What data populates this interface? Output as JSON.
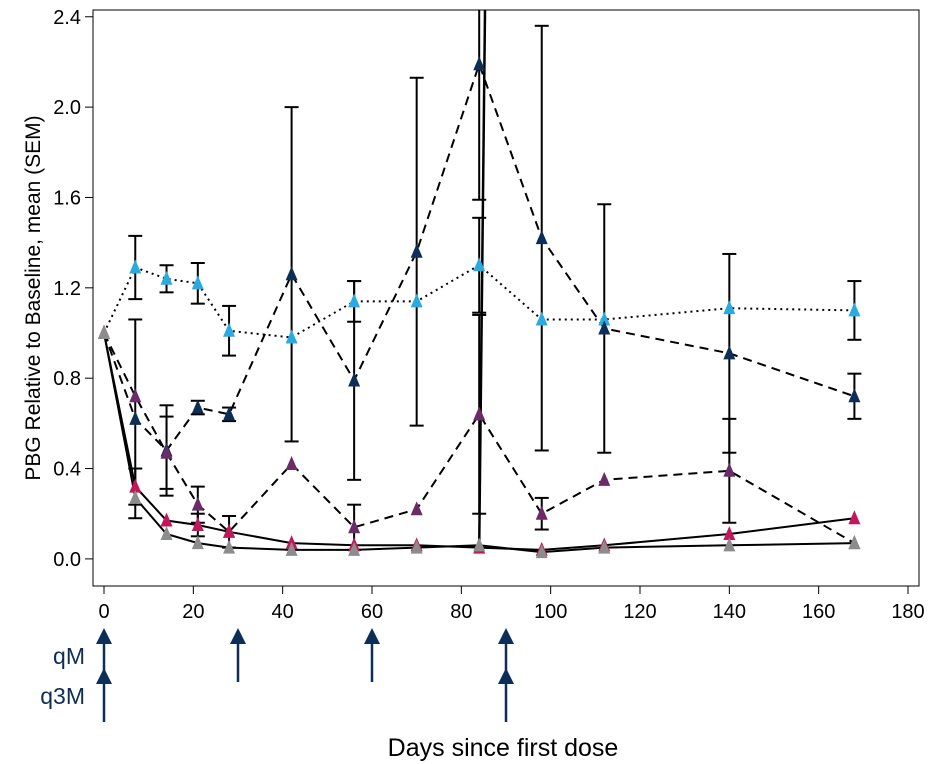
{
  "chart_data": {
    "type": "line",
    "title": "",
    "xlabel": "Days since first dose",
    "ylabel": "PBG Relative to Baseline, mean (SEM)",
    "xlim": [
      -2,
      180
    ],
    "ylim": [
      -0.12,
      2.43
    ],
    "xticks": [
      "0",
      "20",
      "40",
      "60",
      "80",
      "100",
      "120",
      "140",
      "160",
      "180"
    ],
    "yticks": [
      "0.0",
      "0.4",
      "0.8",
      "1.2",
      "1.6",
      "2.0",
      "2.4"
    ],
    "grid": false,
    "legend": "none",
    "series": [
      {
        "color": "#29abe2",
        "marker": "triangle",
        "line": "dotted",
        "x": [
          0,
          7,
          14,
          21,
          28,
          42,
          56,
          70,
          84,
          98,
          112,
          140,
          168
        ],
        "y": [
          1.0,
          1.29,
          1.24,
          1.22,
          1.01,
          0.98,
          1.14,
          1.14,
          1.3,
          1.06,
          1.06,
          1.11,
          1.1
        ],
        "error": [
          0,
          0.14,
          0.06,
          0.09,
          0.11,
          0,
          0.09,
          0,
          0.21,
          0,
          0,
          0,
          0.13
        ]
      },
      {
        "color": "#0d2f57",
        "marker": "triangle",
        "line": "dashed",
        "x": [
          0,
          7,
          14,
          21,
          28,
          42,
          56,
          70,
          84,
          98,
          112,
          140,
          168
        ],
        "y": [
          1.0,
          0.62,
          0.48,
          0.67,
          0.64,
          1.26,
          0.79,
          1.36,
          2.19,
          1.42,
          1.02,
          0.91,
          0.72
        ],
        "error": [
          0,
          0.44,
          0.2,
          0.03,
          0.03,
          0.74,
          0.44,
          0.77,
          0.6,
          0.94,
          0.55,
          0.44,
          0.1
        ]
      },
      {
        "color": "#6b2a68",
        "marker": "triangle",
        "line": "dashed",
        "x": [
          0,
          7,
          14,
          21,
          28,
          42,
          56,
          70,
          84,
          98,
          112,
          140,
          168
        ],
        "y": [
          1.0,
          0.72,
          0.47,
          0.24,
          0.12,
          0.42,
          0.14,
          0.22,
          0.64,
          0.2,
          0.35,
          0.39,
          0.07
        ],
        "error": [
          0,
          0,
          0.16,
          0.08,
          0.07,
          0,
          0.1,
          0,
          0.44,
          0.07,
          0,
          0.23,
          0
        ]
      },
      {
        "color": "#c2185b",
        "marker": "triangle",
        "line": "solid",
        "x": [
          0,
          7,
          14,
          21,
          28,
          42,
          56,
          70,
          84,
          98,
          112,
          140,
          168
        ],
        "y": [
          1.0,
          0.32,
          0.17,
          0.15,
          0.12,
          0.07,
          0.06,
          0.06,
          0.05,
          0.04,
          0.06,
          0.11,
          0.18
        ],
        "error": [
          0,
          0.08,
          0,
          0.05,
          0,
          0,
          0,
          0,
          0,
          0,
          0,
          0,
          0
        ]
      },
      {
        "color": "#8c8c8c",
        "marker": "triangle",
        "line": "solid",
        "x": [
          0,
          7,
          14,
          21,
          28,
          42,
          56,
          70,
          84,
          98,
          112,
          140,
          168
        ],
        "y": [
          1.0,
          0.27,
          0.11,
          0.07,
          0.05,
          0.04,
          0.04,
          0.05,
          0.06,
          0.03,
          0.05,
          0.06,
          0.07
        ],
        "error": [
          0,
          0,
          0,
          0,
          0,
          0,
          0,
          0,
          0,
          0,
          0,
          0,
          0
        ]
      }
    ],
    "off_scale_segment": {
      "color": "#000000",
      "line": "solid",
      "x": [
        84,
        85.3
      ],
      "y": [
        0.05,
        2.43
      ]
    }
  },
  "dosing": {
    "arrow_color": "#0d2f57",
    "schedules": [
      {
        "label": "qM",
        "days": [
          0,
          30,
          60,
          90
        ]
      },
      {
        "label": "q3M",
        "days": [
          0,
          90
        ]
      }
    ]
  }
}
